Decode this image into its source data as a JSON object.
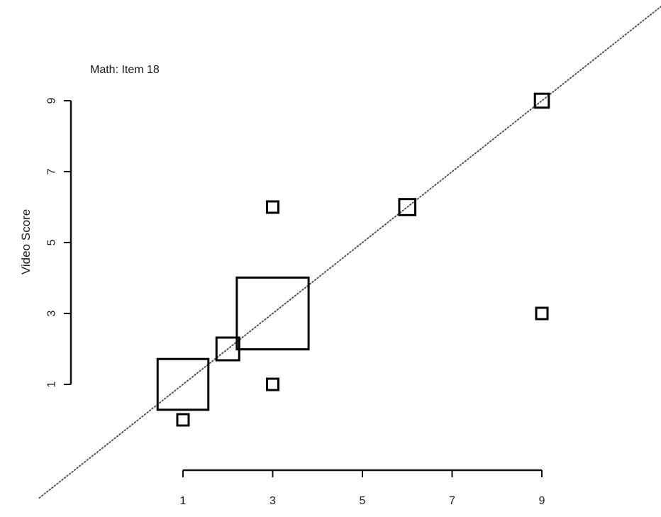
{
  "chart_data": {
    "type": "scatter",
    "title": "Math: Item 18",
    "xlabel": "",
    "ylabel": "Video Score",
    "x_ticks": [
      "1",
      "3",
      "5",
      "7",
      "9"
    ],
    "y_ticks": [
      "1",
      "3",
      "5",
      "7",
      "9"
    ],
    "xlim": [
      -2.2,
      11.8
    ],
    "ylim": [
      -2.4,
      11.1
    ],
    "reference_line": {
      "slope": 1,
      "intercept": 0,
      "style": "dotted"
    },
    "grid": false,
    "points": [
      {
        "x": 1,
        "y": 0,
        "size": 1
      },
      {
        "x": 1,
        "y": 1,
        "size": 20
      },
      {
        "x": 2,
        "y": 2,
        "size": 4
      },
      {
        "x": 3,
        "y": 3,
        "size": 40
      },
      {
        "x": 3,
        "y": 1,
        "size": 1
      },
      {
        "x": 3,
        "y": 6,
        "size": 1
      },
      {
        "x": 6,
        "y": 6,
        "size": 2
      },
      {
        "x": 9,
        "y": 9,
        "size": 1.5
      },
      {
        "x": 9,
        "y": 3,
        "size": 1
      }
    ]
  }
}
